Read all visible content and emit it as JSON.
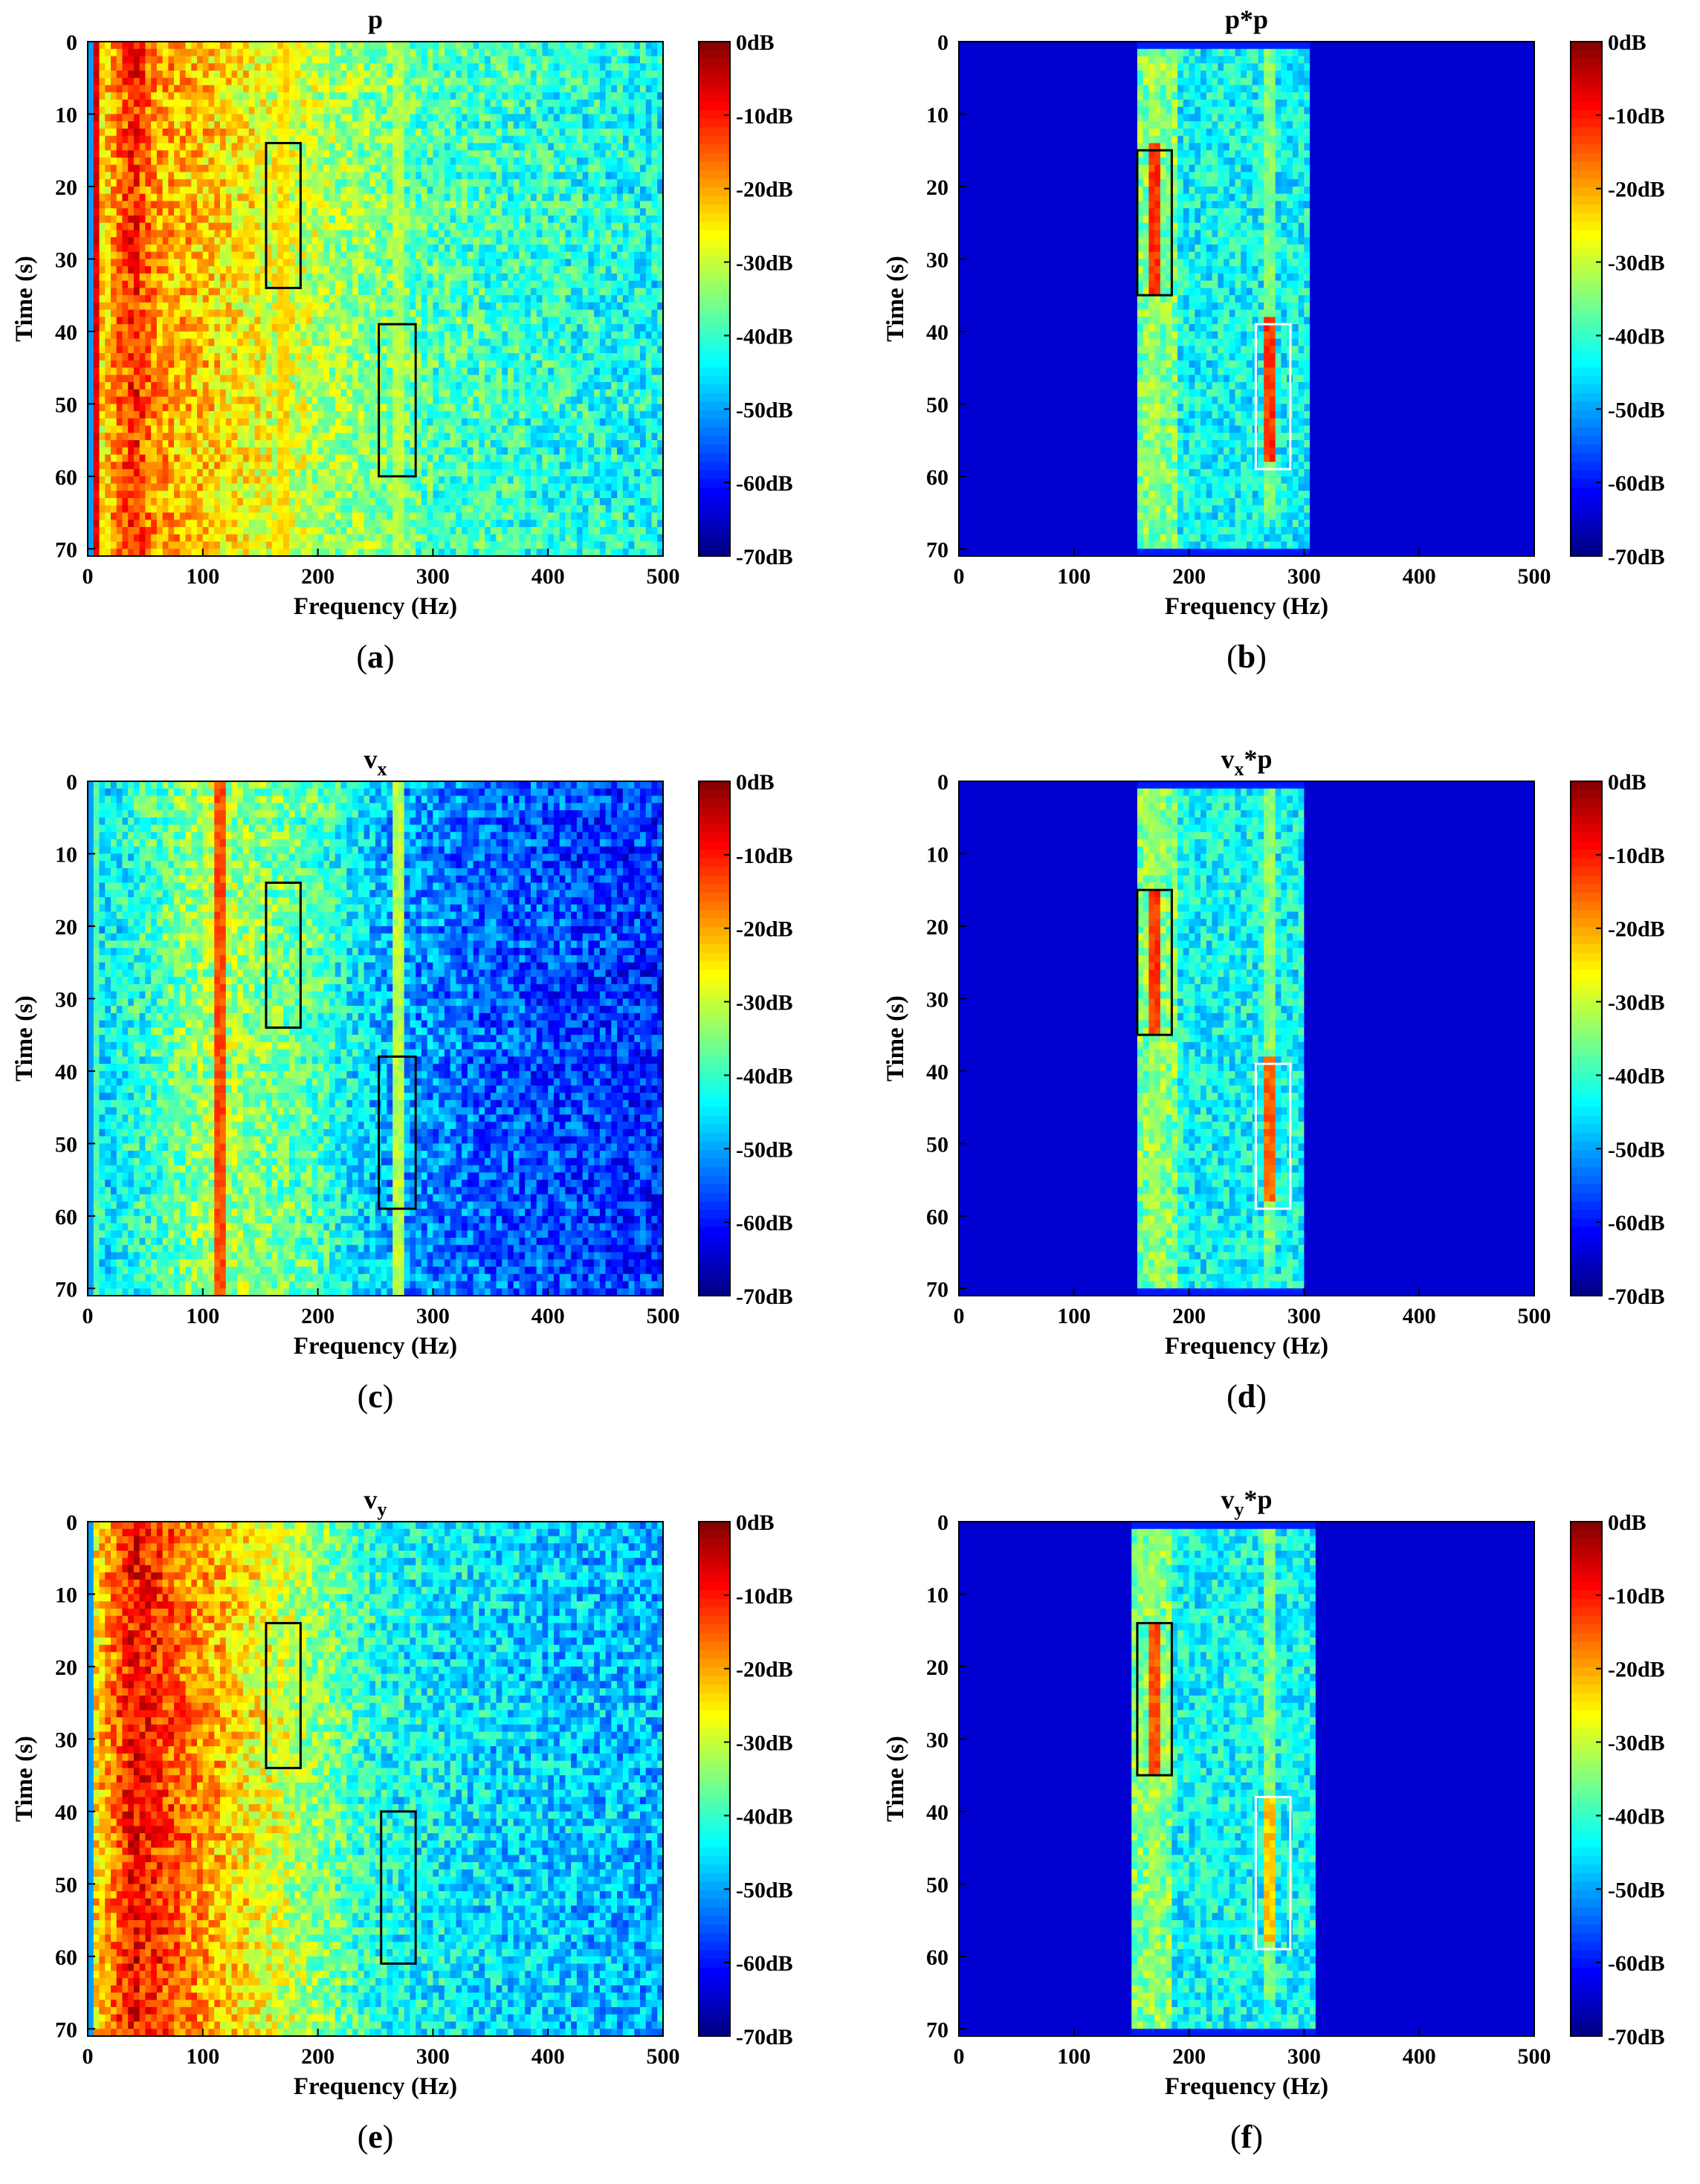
{
  "figure": {
    "panels_layout": "3 rows x 2 columns",
    "colormap": "jet"
  },
  "chart_data": [
    {
      "type": "heatmap",
      "id": "a",
      "title": "p",
      "title_sub": "",
      "title_suffix": "",
      "caption_letter": "a",
      "xlabel": "Frequency (Hz)",
      "ylabel": "Time (s)",
      "xlim": [
        0,
        500
      ],
      "ylim": [
        0,
        71
      ],
      "xticks": [
        "0",
        "100",
        "200",
        "300",
        "400",
        "500"
      ],
      "yticks": [
        "0",
        "10",
        "20",
        "30",
        "40",
        "50",
        "60",
        "70"
      ],
      "colorbar": {
        "min_db": -70,
        "max_db": 0,
        "labels": [
          "0dB",
          "-10dB",
          "-20dB",
          "-30dB",
          "-40dB",
          "-50dB",
          "-60dB",
          "-70dB"
        ]
      },
      "style": "broadband",
      "profile": [
        [
          0,
          0.55
        ],
        [
          40,
          0.85
        ],
        [
          60,
          0.72
        ],
        [
          120,
          0.65
        ],
        [
          200,
          0.55
        ],
        [
          300,
          0.45
        ],
        [
          500,
          0.38
        ]
      ],
      "lines": [
        [
          5,
          0.95
        ],
        [
          170,
          0.7
        ],
        [
          270,
          0.6
        ]
      ],
      "boxes": [
        {
          "f": [
            155,
            185
          ],
          "t": [
            14,
            34
          ],
          "color": "black"
        },
        {
          "f": [
            253,
            285
          ],
          "t": [
            39,
            60
          ],
          "color": "black"
        }
      ]
    },
    {
      "type": "heatmap",
      "id": "b",
      "title": "p*p",
      "title_sub": "",
      "title_suffix": "",
      "caption_letter": "b",
      "xlabel": "Frequency (Hz)",
      "ylabel": "Time (s)",
      "xlim": [
        0,
        500
      ],
      "ylim": [
        0,
        71
      ],
      "xticks": [
        "0",
        "100",
        "200",
        "300",
        "400",
        "500"
      ],
      "yticks": [
        "0",
        "10",
        "20",
        "30",
        "40",
        "50",
        "60",
        "70"
      ],
      "colorbar": {
        "min_db": -70,
        "max_db": 0,
        "labels": [
          "0dB",
          "-10dB",
          "-20dB",
          "-30dB",
          "-40dB",
          "-50dB",
          "-60dB",
          "-70dB"
        ]
      },
      "style": "product",
      "band_hz": [
        155,
        305
      ],
      "lines": [
        [
          170,
          0.95,
          14,
          35
        ],
        [
          270,
          0.95,
          38,
          58
        ]
      ],
      "boxes": [
        {
          "f": [
            155,
            185
          ],
          "t": [
            15,
            35
          ],
          "color": "black"
        },
        {
          "f": [
            258,
            288
          ],
          "t": [
            39,
            59
          ],
          "color": "white"
        }
      ]
    },
    {
      "type": "heatmap",
      "id": "c",
      "title": "v",
      "title_sub": "x",
      "title_suffix": "",
      "caption_letter": "c",
      "xlabel": "Frequency (Hz)",
      "ylabel": "Time (s)",
      "xlim": [
        0,
        500
      ],
      "ylim": [
        0,
        71
      ],
      "xticks": [
        "0",
        "100",
        "200",
        "300",
        "400",
        "500"
      ],
      "yticks": [
        "0",
        "10",
        "20",
        "30",
        "40",
        "50",
        "60",
        "70"
      ],
      "colorbar": {
        "min_db": -70,
        "max_db": 0,
        "labels": [
          "0dB",
          "-10dB",
          "-20dB",
          "-30dB",
          "-40dB",
          "-50dB",
          "-60dB",
          "-70dB"
        ]
      },
      "style": "broadband",
      "profile": [
        [
          0,
          0.35
        ],
        [
          50,
          0.42
        ],
        [
          110,
          0.55
        ],
        [
          200,
          0.45
        ],
        [
          260,
          0.3
        ],
        [
          350,
          0.22
        ],
        [
          500,
          0.17
        ]
      ],
      "lines": [
        [
          115,
          0.85
        ],
        [
          5,
          0.5
        ],
        [
          270,
          0.6
        ]
      ],
      "boxes": [
        {
          "f": [
            155,
            185
          ],
          "t": [
            14,
            34
          ],
          "color": "black"
        },
        {
          "f": [
            253,
            285
          ],
          "t": [
            38,
            59
          ],
          "color": "black"
        }
      ]
    },
    {
      "type": "heatmap",
      "id": "d",
      "title": "v",
      "title_sub": "x",
      "title_suffix": "*p",
      "caption_letter": "d",
      "xlabel": "Frequency (Hz)",
      "ylabel": "Time (s)",
      "xlim": [
        0,
        500
      ],
      "ylim": [
        0,
        71
      ],
      "xticks": [
        "0",
        "100",
        "200",
        "300",
        "400",
        "500"
      ],
      "yticks": [
        "0",
        "10",
        "20",
        "30",
        "40",
        "50",
        "60",
        "70"
      ],
      "colorbar": {
        "min_db": -70,
        "max_db": 0,
        "labels": [
          "0dB",
          "-10dB",
          "-20dB",
          "-30dB",
          "-40dB",
          "-50dB",
          "-60dB",
          "-70dB"
        ]
      },
      "style": "product",
      "band_hz": [
        155,
        300
      ],
      "lines": [
        [
          170,
          0.95,
          15,
          35
        ],
        [
          270,
          0.9,
          38,
          58
        ]
      ],
      "boxes": [
        {
          "f": [
            155,
            185
          ],
          "t": [
            15,
            35
          ],
          "color": "black"
        },
        {
          "f": [
            258,
            288
          ],
          "t": [
            39,
            59
          ],
          "color": "white"
        }
      ]
    },
    {
      "type": "heatmap",
      "id": "e",
      "title": "v",
      "title_sub": "y",
      "title_suffix": "",
      "caption_letter": "e",
      "xlabel": "Frequency (Hz)",
      "ylabel": "Time (s)",
      "xlim": [
        0,
        500
      ],
      "ylim": [
        0,
        71
      ],
      "xticks": [
        "0",
        "100",
        "200",
        "300",
        "400",
        "500"
      ],
      "yticks": [
        "0",
        "10",
        "20",
        "30",
        "40",
        "50",
        "60",
        "70"
      ],
      "colorbar": {
        "min_db": -70,
        "max_db": 0,
        "labels": [
          "0dB",
          "-10dB",
          "-20dB",
          "-30dB",
          "-40dB",
          "-50dB",
          "-60dB",
          "-70dB"
        ]
      },
      "style": "broadband",
      "profile": [
        [
          0,
          0.6
        ],
        [
          40,
          0.88
        ],
        [
          100,
          0.72
        ],
        [
          180,
          0.55
        ],
        [
          250,
          0.4
        ],
        [
          350,
          0.34
        ],
        [
          500,
          0.3
        ]
      ],
      "lines": [],
      "boxes": [
        {
          "f": [
            155,
            185
          ],
          "t": [
            14,
            34
          ],
          "color": "black"
        },
        {
          "f": [
            255,
            285
          ],
          "t": [
            40,
            61
          ],
          "color": "black"
        }
      ]
    },
    {
      "type": "heatmap",
      "id": "f",
      "title": "v",
      "title_sub": "y",
      "title_suffix": "*p",
      "caption_letter": "f",
      "xlabel": "Frequency (Hz)",
      "ylabel": "Time (s)",
      "xlim": [
        0,
        500
      ],
      "ylim": [
        0,
        71
      ],
      "xticks": [
        "0",
        "100",
        "200",
        "300",
        "400",
        "500"
      ],
      "yticks": [
        "0",
        "10",
        "20",
        "30",
        "40",
        "50",
        "60",
        "70"
      ],
      "colorbar": {
        "min_db": -70,
        "max_db": 0,
        "labels": [
          "0dB",
          "-10dB",
          "-20dB",
          "-30dB",
          "-40dB",
          "-50dB",
          "-60dB",
          "-70dB"
        ]
      },
      "style": "product",
      "band_hz": [
        150,
        310
      ],
      "lines": [
        [
          170,
          0.92,
          14,
          35
        ],
        [
          270,
          0.8,
          38,
          58
        ]
      ],
      "boxes": [
        {
          "f": [
            155,
            185
          ],
          "t": [
            14,
            35
          ],
          "color": "black"
        },
        {
          "f": [
            258,
            288
          ],
          "t": [
            38,
            59
          ],
          "color": "white"
        }
      ]
    }
  ]
}
